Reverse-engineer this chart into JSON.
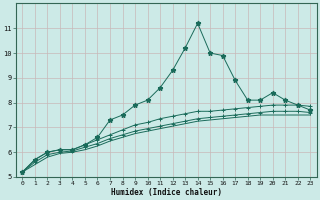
{
  "x": [
    0,
    1,
    2,
    3,
    4,
    5,
    6,
    7,
    8,
    9,
    10,
    11,
    12,
    13,
    14,
    15,
    16,
    17,
    18,
    19,
    20,
    21,
    22,
    23
  ],
  "line1": [
    5.2,
    5.7,
    6.0,
    6.1,
    6.1,
    6.3,
    6.6,
    7.3,
    7.5,
    7.9,
    8.1,
    8.6,
    9.3,
    10.2,
    11.2,
    10.0,
    9.9,
    8.9,
    8.1,
    8.1,
    8.4,
    8.1,
    7.9,
    7.7
  ],
  "line2": [
    5.2,
    5.7,
    6.0,
    6.1,
    6.1,
    6.3,
    6.5,
    6.7,
    6.9,
    7.1,
    7.2,
    7.35,
    7.45,
    7.55,
    7.65,
    7.65,
    7.7,
    7.75,
    7.8,
    7.85,
    7.9,
    7.9,
    7.9,
    7.85
  ],
  "line3": [
    5.2,
    5.6,
    5.9,
    6.0,
    6.05,
    6.2,
    6.35,
    6.55,
    6.7,
    6.85,
    6.95,
    7.05,
    7.15,
    7.25,
    7.35,
    7.4,
    7.45,
    7.5,
    7.55,
    7.6,
    7.65,
    7.65,
    7.65,
    7.6
  ],
  "line4": [
    5.2,
    5.5,
    5.8,
    5.95,
    6.0,
    6.1,
    6.25,
    6.45,
    6.6,
    6.75,
    6.85,
    6.95,
    7.05,
    7.15,
    7.25,
    7.3,
    7.35,
    7.4,
    7.45,
    7.5,
    7.5,
    7.5,
    7.5,
    7.5
  ],
  "color": "#1a6b5a",
  "bg_color": "#cceae7",
  "grid_color": "#c8b8b8",
  "xlabel": "Humidex (Indice chaleur)",
  "ylim": [
    5,
    12
  ],
  "xlim": [
    -0.5,
    23.5
  ],
  "yticks": [
    5,
    6,
    7,
    8,
    9,
    10,
    11
  ],
  "xticks": [
    0,
    1,
    2,
    3,
    4,
    5,
    6,
    7,
    8,
    9,
    10,
    11,
    12,
    13,
    14,
    15,
    16,
    17,
    18,
    19,
    20,
    21,
    22,
    23
  ]
}
